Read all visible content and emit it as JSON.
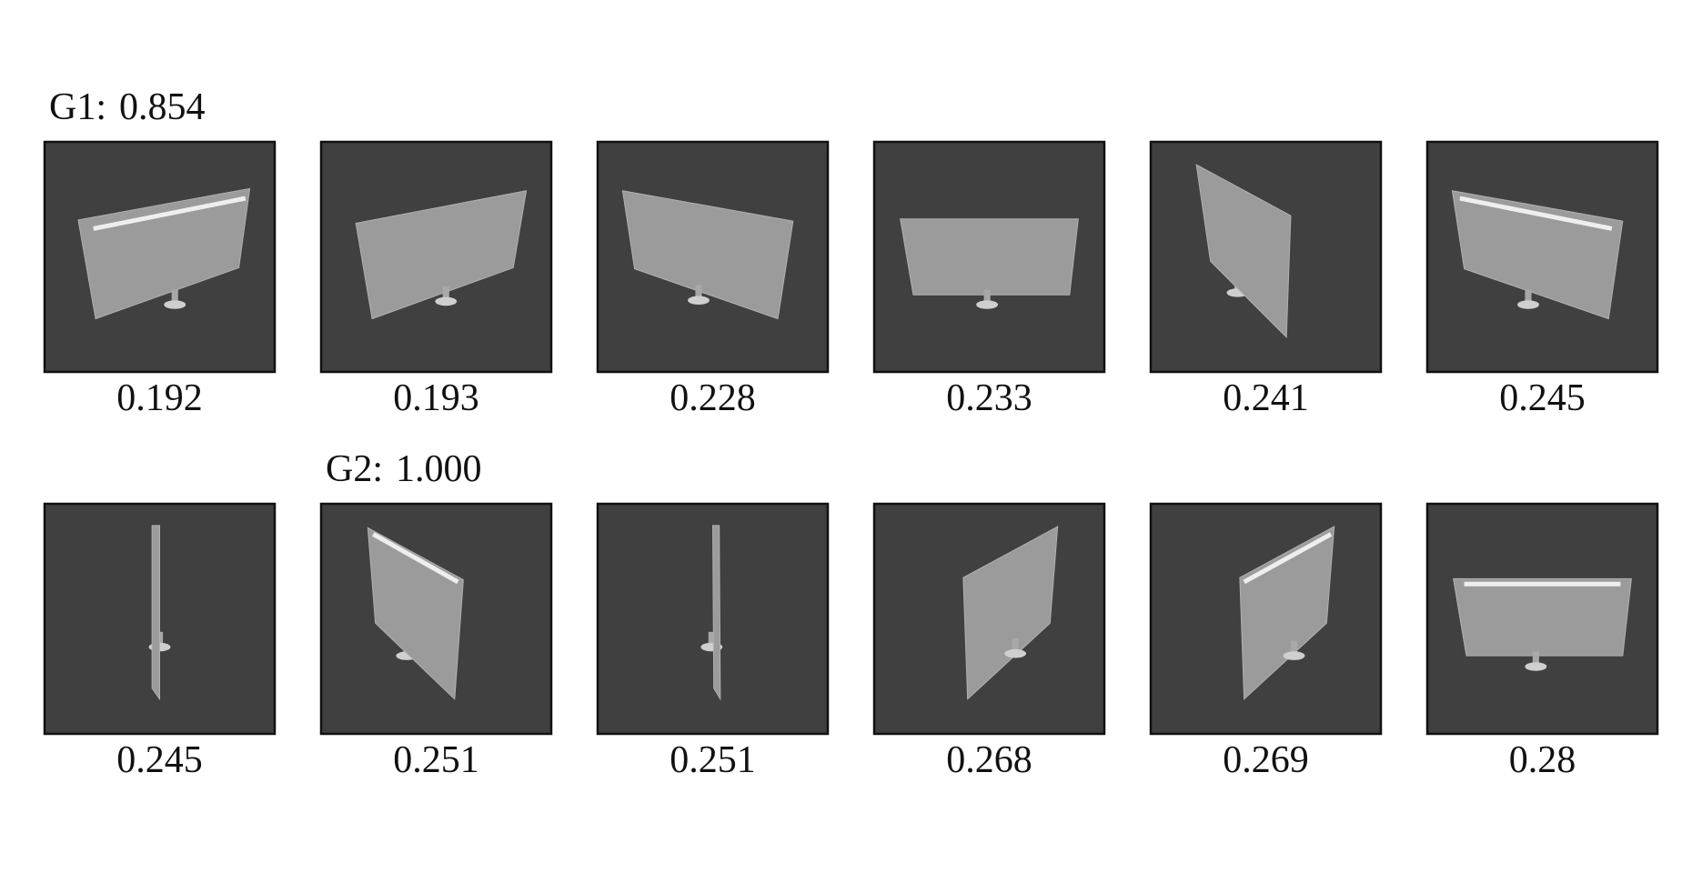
{
  "groups": [
    {
      "name": "G1:",
      "score": "0.854"
    },
    {
      "name": "G2:",
      "score": "1.000"
    }
  ],
  "grid": {
    "rows": [
      [
        0.192,
        0.193,
        0.228,
        0.233,
        0.241,
        0.245
      ],
      [
        0.245,
        0.251,
        0.251,
        0.268,
        0.269,
        0.28
      ]
    ]
  }
}
